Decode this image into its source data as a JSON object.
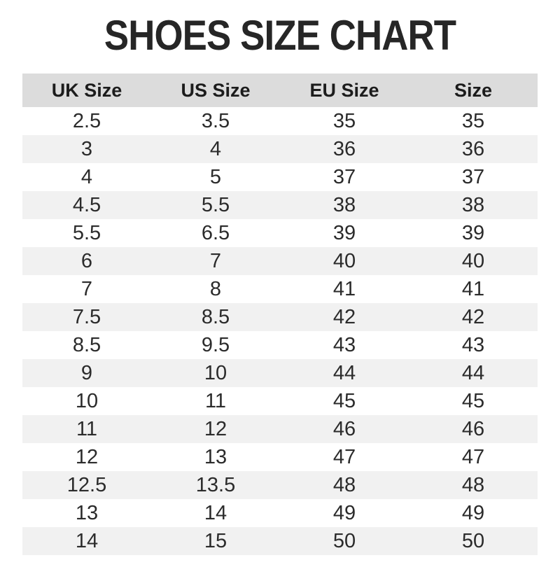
{
  "page": {
    "title": "SHOES SIZE CHART"
  },
  "table": {
    "columns": [
      "UK Size",
      "US Size",
      "EU Size",
      "Size"
    ],
    "rows": [
      [
        "2.5",
        "3.5",
        "35",
        "35"
      ],
      [
        "3",
        "4",
        "36",
        "36"
      ],
      [
        "4",
        "5",
        "37",
        "37"
      ],
      [
        "4.5",
        "5.5",
        "38",
        "38"
      ],
      [
        "5.5",
        "6.5",
        "39",
        "39"
      ],
      [
        "6",
        "7",
        "40",
        "40"
      ],
      [
        "7",
        "8",
        "41",
        "41"
      ],
      [
        "7.5",
        "8.5",
        "42",
        "42"
      ],
      [
        "8.5",
        "9.5",
        "43",
        "43"
      ],
      [
        "9",
        "10",
        "44",
        "44"
      ],
      [
        "10",
        "11",
        "45",
        "45"
      ],
      [
        "11",
        "12",
        "46",
        "46"
      ],
      [
        "12",
        "13",
        "47",
        "47"
      ],
      [
        "12.5",
        "13.5",
        "48",
        "48"
      ],
      [
        "13",
        "14",
        "49",
        "49"
      ],
      [
        "14",
        "15",
        "50",
        "50"
      ]
    ]
  },
  "colors": {
    "header_bg": "#dcdcdc",
    "row_alt_bg": "#f1f1f1",
    "title_text": "#262626",
    "cell_text": "#2b2b2b"
  },
  "chart_data": {
    "type": "table",
    "title": "SHOES SIZE CHART",
    "columns": [
      "UK Size",
      "US Size",
      "EU Size",
      "Size"
    ],
    "rows": [
      [
        2.5,
        3.5,
        35,
        35
      ],
      [
        3,
        4,
        36,
        36
      ],
      [
        4,
        5,
        37,
        37
      ],
      [
        4.5,
        5.5,
        38,
        38
      ],
      [
        5.5,
        6.5,
        39,
        39
      ],
      [
        6,
        7,
        40,
        40
      ],
      [
        7,
        8,
        41,
        41
      ],
      [
        7.5,
        8.5,
        42,
        42
      ],
      [
        8.5,
        9.5,
        43,
        43
      ],
      [
        9,
        10,
        44,
        44
      ],
      [
        10,
        11,
        45,
        45
      ],
      [
        11,
        12,
        46,
        46
      ],
      [
        12,
        13,
        47,
        47
      ],
      [
        12.5,
        13.5,
        48,
        48
      ],
      [
        13,
        14,
        49,
        49
      ],
      [
        14,
        15,
        50,
        50
      ]
    ],
    "layout_hints": {
      "header_background": "#dcdcdc",
      "zebra_striping": true,
      "stripe_background": "#f1f1f1",
      "grid": false,
      "column_alignment": "center"
    }
  }
}
